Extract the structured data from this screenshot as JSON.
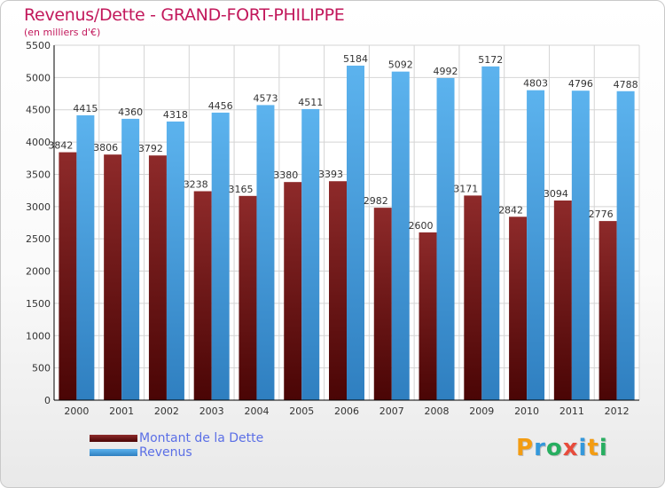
{
  "title": "Revenus/Dette - GRAND-FORT-PHILIPPE",
  "subtitle": "(en milliers d'€)",
  "chart_data": {
    "type": "bar",
    "categories": [
      "2000",
      "2001",
      "2002",
      "2003",
      "2004",
      "2005",
      "2006",
      "2007",
      "2008",
      "2009",
      "2010",
      "2011",
      "2012"
    ],
    "series": [
      {
        "name": "Montant de la Dette",
        "color": "#7a1818",
        "values": [
          3842,
          3806,
          3792,
          3238,
          3165,
          3380,
          3393,
          2982,
          2600,
          3171,
          2842,
          3094,
          2776
        ]
      },
      {
        "name": "Revenus",
        "color": "#4aa3e6",
        "values": [
          4415,
          4360,
          4318,
          4456,
          4573,
          4511,
          5184,
          5092,
          4992,
          5172,
          4803,
          4796,
          4788
        ]
      }
    ],
    "ylim": [
      0,
      5500
    ],
    "yticks": [
      0,
      500,
      1000,
      1500,
      2000,
      2500,
      3000,
      3500,
      4000,
      4500,
      5000,
      5500
    ],
    "grid": true,
    "legend": "bottom-left"
  },
  "logo": {
    "letters": [
      {
        "ch": "P",
        "color": "#f39c12"
      },
      {
        "ch": "r",
        "color": "#3498db"
      },
      {
        "ch": "o",
        "color": "#27ae60"
      },
      {
        "ch": "x",
        "color": "#e74c3c"
      },
      {
        "ch": "i",
        "color": "#3498db"
      },
      {
        "ch": "t",
        "color": "#f39c12"
      },
      {
        "ch": "i",
        "color": "#27ae60"
      }
    ]
  }
}
